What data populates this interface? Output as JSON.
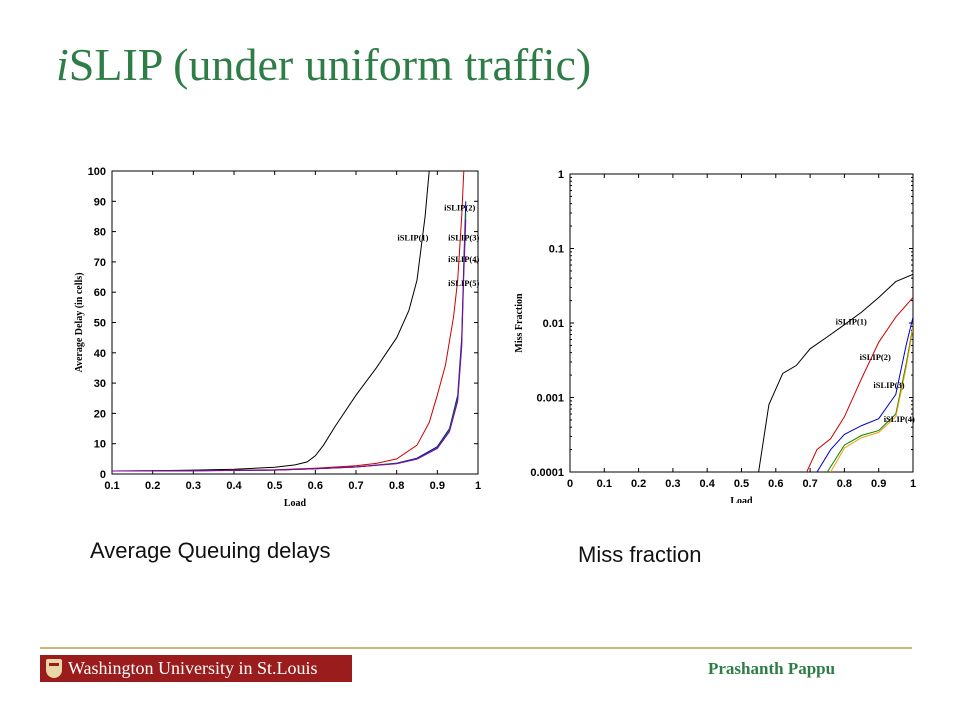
{
  "slide": {
    "title_italic": "i",
    "title_rest": "SLIP (under uniform traffic)",
    "caption_left": "Average Queuing delays",
    "caption_right": "Miss fraction",
    "footer_logo": "Washington University in St.Louis",
    "author": "Prashanth Pappu"
  },
  "chart_data": [
    {
      "type": "line",
      "xlabel": "Load",
      "ylabel": "Average Delay (in cells)",
      "xlim": [
        0.1,
        1.0
      ],
      "ylim": [
        0,
        100
      ],
      "xticks": [
        "0.1",
        "0.2",
        "0.3",
        "0.4",
        "0.5",
        "0.6",
        "0.7",
        "0.8",
        "0.9",
        "1"
      ],
      "yticks": [
        "0",
        "10",
        "20",
        "30",
        "40",
        "50",
        "60",
        "70",
        "80",
        "90",
        "100"
      ],
      "grid": false,
      "series": [
        {
          "name": "iSLIP(1)",
          "color": "#000000",
          "label_at": [
            0.84,
            77
          ],
          "x": [
            0.1,
            0.2,
            0.3,
            0.4,
            0.5,
            0.55,
            0.58,
            0.6,
            0.62,
            0.65,
            0.7,
            0.75,
            0.8,
            0.83,
            0.85,
            0.87,
            0.88
          ],
          "y": [
            1.0,
            1.1,
            1.3,
            1.6,
            2.2,
            3.0,
            4.0,
            6.0,
            9.5,
            16,
            26,
            35,
            45,
            54,
            64,
            85,
            100
          ]
        },
        {
          "name": "iSLIP(2)",
          "color": "#cc0000",
          "label_at": [
            0.955,
            87
          ],
          "x": [
            0.1,
            0.3,
            0.5,
            0.6,
            0.7,
            0.75,
            0.8,
            0.85,
            0.88,
            0.9,
            0.92,
            0.94,
            0.95,
            0.96,
            0.965
          ],
          "y": [
            1.0,
            1.1,
            1.4,
            1.9,
            2.7,
            3.5,
            5.0,
            9.5,
            17,
            26,
            36,
            52,
            64,
            85,
            100
          ]
        },
        {
          "name": "iSLIP(3)",
          "color": "#0000cc",
          "label_at": [
            0.965,
            77
          ],
          "x": [
            0.1,
            0.3,
            0.5,
            0.6,
            0.7,
            0.8,
            0.85,
            0.9,
            0.93,
            0.95,
            0.96,
            0.965,
            0.97
          ],
          "y": [
            1.0,
            1.1,
            1.3,
            1.7,
            2.3,
            3.6,
            5.2,
            9.0,
            15,
            26,
            45,
            70,
            90
          ]
        },
        {
          "name": "iSLIP(4)",
          "color": "#008800",
          "label_at": [
            0.965,
            70
          ],
          "x": [
            0.1,
            0.3,
            0.5,
            0.6,
            0.7,
            0.8,
            0.85,
            0.9,
            0.93,
            0.95,
            0.96,
            0.965,
            0.97
          ],
          "y": [
            1.0,
            1.1,
            1.3,
            1.7,
            2.3,
            3.5,
            5.0,
            8.6,
            14.5,
            25,
            43,
            68,
            86
          ]
        },
        {
          "name": "iSLIP(5)",
          "color": "#8800aa",
          "label_at": [
            0.965,
            62
          ],
          "x": [
            0.1,
            0.3,
            0.5,
            0.6,
            0.7,
            0.8,
            0.85,
            0.9,
            0.93,
            0.95,
            0.96,
            0.965,
            0.97
          ],
          "y": [
            1.0,
            1.1,
            1.3,
            1.7,
            2.3,
            3.4,
            4.9,
            8.4,
            14,
            24,
            42,
            66,
            84
          ]
        }
      ]
    },
    {
      "type": "line",
      "xlabel": "Load",
      "ylabel": "Miss Fraction",
      "xlim": [
        0,
        1.0
      ],
      "ylim": [
        0.0001,
        1
      ],
      "yscale": "log",
      "xticks": [
        "0",
        "0.1",
        "0.2",
        "0.3",
        "0.4",
        "0.5",
        "0.6",
        "0.7",
        "0.8",
        "0.9",
        "1"
      ],
      "yticks": [
        "0.0001",
        "0.001",
        "0.01",
        "0.1",
        "1"
      ],
      "grid": false,
      "series": [
        {
          "name": "iSLIP(1)",
          "color": "#000000",
          "label_at": [
            0.82,
            0.0095
          ],
          "x": [
            0.55,
            0.58,
            0.62,
            0.66,
            0.7,
            0.75,
            0.8,
            0.85,
            0.9,
            0.95,
            1.0
          ],
          "y": [
            0.0001,
            0.0008,
            0.0021,
            0.0027,
            0.0045,
            0.0065,
            0.0095,
            0.014,
            0.022,
            0.036,
            0.045
          ]
        },
        {
          "name": "iSLIP(2)",
          "color": "#cc0000",
          "label_at": [
            0.89,
            0.0032
          ],
          "x": [
            0.69,
            0.72,
            0.76,
            0.8,
            0.85,
            0.9,
            0.95,
            1.0
          ],
          "y": [
            0.0001,
            0.0002,
            0.00028,
            0.00055,
            0.0018,
            0.0055,
            0.012,
            0.022
          ]
        },
        {
          "name": "iSLIP(3)",
          "color": "#0000cc",
          "label_at": [
            0.93,
            0.00135
          ],
          "x": [
            0.72,
            0.76,
            0.8,
            0.85,
            0.9,
            0.95,
            0.98,
            1.0
          ],
          "y": [
            0.0001,
            0.0002,
            0.00032,
            0.00042,
            0.00052,
            0.0011,
            0.005,
            0.012
          ]
        },
        {
          "name": "iSLIP(4)",
          "color": "#008800",
          "label_at": [
            0.96,
            0.00047
          ],
          "x": [
            0.75,
            0.8,
            0.85,
            0.9,
            0.95,
            0.98,
            1.0
          ],
          "y": [
            0.0001,
            0.00023,
            0.00031,
            0.00036,
            0.0006,
            0.0028,
            0.009
          ]
        },
        {
          "name": "",
          "color": "#ff9900",
          "label_at": null,
          "x": [
            0.76,
            0.8,
            0.85,
            0.9,
            0.95,
            0.98,
            1.0
          ],
          "y": [
            0.0001,
            0.00021,
            0.00029,
            0.00034,
            0.00055,
            0.0025,
            0.0085
          ]
        }
      ]
    }
  ]
}
